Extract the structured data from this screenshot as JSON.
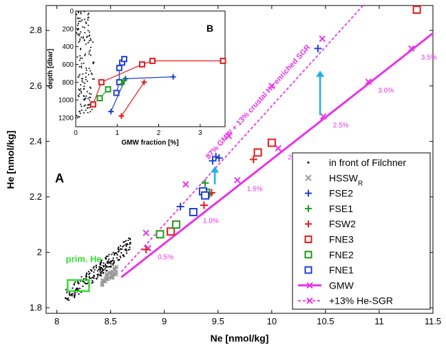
{
  "chart_data": [
    {
      "type": "scatter",
      "panel_label": "A",
      "xlabel": "Ne [nmol/kg]",
      "ylabel": "He [nmol/kg]",
      "xlim": [
        7.9,
        11.5
      ],
      "ylim": [
        1.78,
        2.89
      ],
      "xticks": [
        "8",
        "8.5",
        "9",
        "9.5",
        "10",
        "10.5",
        "11",
        "11.5"
      ],
      "yticks": [
        "1.8",
        "2",
        "2.2",
        "2.4",
        "2.6",
        "2.8"
      ],
      "grid": false,
      "legend_position": "bottom-right",
      "legend": [
        {
          "key": "filchner",
          "label": "in front of Filchner",
          "marker": "dot",
          "color": "#000000"
        },
        {
          "key": "hssw",
          "label": "HSSW",
          "label_sub": "R",
          "marker": "x",
          "color": "#999999"
        },
        {
          "key": "fse2",
          "label": "FSE2",
          "marker": "plus",
          "color": "#1f3fd0"
        },
        {
          "key": "fse1",
          "label": "FSE1",
          "marker": "plus",
          "color": "#1a9a1a"
        },
        {
          "key": "fsw2",
          "label": "FSW2",
          "marker": "plus",
          "color": "#e81818"
        },
        {
          "key": "fne3",
          "label": "FNE3",
          "marker": "square",
          "color": "#e81818"
        },
        {
          "key": "fne2",
          "label": "FNE2",
          "marker": "square",
          "color": "#1a9a1a"
        },
        {
          "key": "fne1",
          "label": "FNE1",
          "marker": "square",
          "color": "#1f3fd0"
        },
        {
          "key": "gmw",
          "label": "GMW",
          "marker": "line-x",
          "color": "#e833e8"
        },
        {
          "key": "hesgr",
          "label": "+13%  He-SGR",
          "marker": "dashed-x",
          "color": "#e833e8"
        }
      ],
      "series": [
        {
          "key": "gmw",
          "x": [
            8.6,
            11.5
          ],
          "y": [
            1.91,
            2.79
          ],
          "color": "#e833e8",
          "style": "solid",
          "ticks": [
            {
              "x": 8.85,
              "y": 2.015,
              "label": "0.5%"
            },
            {
              "x": 9.27,
              "y": 2.145,
              "label": "1.0%"
            },
            {
              "x": 9.68,
              "y": 2.26,
              "label": "1.5%"
            },
            {
              "x": 10.06,
              "y": 2.375,
              "label": "2.0%"
            },
            {
              "x": 10.48,
              "y": 2.49,
              "label": "2.5%"
            },
            {
              "x": 10.9,
              "y": 2.615,
              "label": "3.0%"
            },
            {
              "x": 11.3,
              "y": 2.735,
              "label": "3.5%"
            }
          ]
        },
        {
          "key": "hesgr",
          "x": [
            8.6,
            10.85
          ],
          "y": [
            1.93,
            2.89
          ],
          "color": "#e833e8",
          "style": "dashed",
          "label": "87% GMW + 13% crustal He enriched SGR",
          "ticks": [
            {
              "x": 8.83,
              "y": 2.07
            },
            {
              "x": 9.2,
              "y": 2.245
            },
            {
              "x": 9.6,
              "y": 2.42
            },
            {
              "x": 10.0,
              "y": 2.6
            },
            {
              "x": 10.47,
              "y": 2.77
            }
          ]
        },
        {
          "key": "fse2",
          "x": [
            9.15,
            9.45,
            9.48,
            9.51,
            10.43
          ],
          "y": [
            2.165,
            2.33,
            2.345,
            2.34,
            2.735
          ]
        },
        {
          "key": "fse1",
          "x": [
            9.38,
            9.42
          ],
          "y": [
            2.25,
            2.21
          ]
        },
        {
          "key": "fsw2",
          "x": [
            8.83,
            9.37,
            9.44,
            9.83
          ],
          "y": [
            2.01,
            2.17,
            2.215,
            2.335
          ]
        },
        {
          "key": "fne3",
          "x": [
            9.06,
            9.87,
            10.0,
            11.35
          ],
          "y": [
            2.075,
            2.36,
            2.395,
            2.875
          ]
        },
        {
          "key": "fne2",
          "x": [
            8.96,
            9.11,
            9.39
          ],
          "y": [
            2.065,
            2.1,
            2.215
          ]
        },
        {
          "key": "fne1",
          "x": [
            9.27,
            9.36,
            9.38
          ],
          "y": [
            2.145,
            2.22,
            2.205
          ]
        }
      ],
      "annotations": [
        {
          "text": "prim. He",
          "x": 8.25,
          "y": 1.965,
          "color": "#33dd33"
        },
        {
          "text": "87% GMW + 13% crustal He enriched SGR",
          "color": "#e833e8"
        }
      ],
      "primordial_box": {
        "x": [
          8.1,
          8.3
        ],
        "y": [
          1.86,
          1.9
        ],
        "color": "#33dd33"
      },
      "arrows": [
        {
          "from": [
            9.47,
            2.245
          ],
          "to": [
            9.47,
            2.31
          ],
          "color": "#1ab0e8"
        },
        {
          "from": [
            10.45,
            2.495
          ],
          "to": [
            10.45,
            2.655
          ],
          "color": "#1ab0e8"
        }
      ]
    },
    {
      "type": "line",
      "panel_label": "B",
      "xlabel": "GMW fraction [%]",
      "ylabel": "depth [dbar]",
      "xlim": [
        0,
        3.6
      ],
      "ylim": [
        0,
        1300
      ],
      "y_reversed": true,
      "xticks": [
        "0",
        "1",
        "2",
        "3"
      ],
      "yticks": [
        "0",
        "200",
        "400",
        "600",
        "800",
        "1000",
        "1200"
      ],
      "series": [
        {
          "key": "fne3",
          "color": "#e81818",
          "marker": "square",
          "x": [
            0.42,
            0.62,
            1.6,
            1.85,
            3.55
          ],
          "depth": [
            1050,
            800,
            600,
            560,
            560
          ]
        },
        {
          "key": "fne2",
          "color": "#1a9a1a",
          "marker": "square",
          "x": [
            0.58,
            0.78
          ],
          "depth": [
            980,
            880
          ]
        },
        {
          "key": "fne1",
          "color": "#1f3fd0",
          "marker": "square",
          "x": [
            0.98,
            1.05,
            1.05,
            1.12,
            1.17
          ],
          "depth": [
            920,
            800,
            640,
            580,
            540
          ]
        },
        {
          "key": "fse2",
          "color": "#1f3fd0",
          "marker": "plus",
          "x": [
            0.85,
            1.2,
            2.35
          ],
          "depth": [
            1130,
            760,
            740
          ]
        },
        {
          "key": "fsw2",
          "color": "#e81818",
          "marker": "plus",
          "x": [
            1.1,
            1.65
          ],
          "depth": [
            1180,
            800
          ]
        },
        {
          "key": "fse1",
          "color": "#1a9a1a",
          "marker": "plus",
          "x": [
            1.12,
            1.17
          ],
          "depth": [
            820,
            780
          ]
        }
      ]
    }
  ]
}
